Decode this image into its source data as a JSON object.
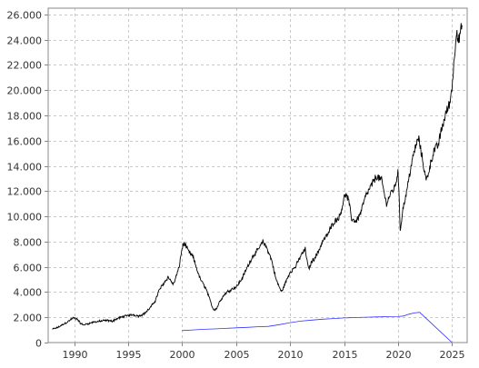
{
  "chart_data": {
    "type": "line",
    "title": "",
    "xlabel": "",
    "ylabel": "",
    "xlim": [
      1987.6,
      2026.4
    ],
    "ylim": [
      0,
      26500
    ],
    "grid": true,
    "x_ticks": [
      1990,
      1995,
      2000,
      2005,
      2010,
      2015,
      2020,
      2025
    ],
    "x_tick_labels": [
      "1990",
      "1995",
      "2000",
      "2005",
      "2010",
      "2015",
      "2020",
      "2025"
    ],
    "y_ticks": [
      0,
      2000,
      4000,
      6000,
      8000,
      10000,
      12000,
      14000,
      16000,
      18000,
      20000,
      22000,
      24000,
      26000
    ],
    "y_tick_labels": [
      "0",
      "2.000",
      "4.000",
      "6.000",
      "8.000",
      "10.000",
      "12.000",
      "14.000",
      "16.000",
      "18.000",
      "20.000",
      "22.000",
      "24.000",
      "26.000"
    ],
    "series": [
      {
        "color": "#000000",
        "noisy": true,
        "x": [
          1988.0,
          1988.5,
          1989.0,
          1989.5,
          1989.9,
          1990.3,
          1990.6,
          1990.9,
          1991.5,
          1992.0,
          1992.5,
          1993.0,
          1993.5,
          1994.0,
          1994.5,
          1995.0,
          1995.5,
          1996.0,
          1996.5,
          1997.0,
          1997.5,
          1997.9,
          1998.3,
          1998.7,
          1999.2,
          1999.7,
          2000.0,
          2000.2,
          2000.6,
          2001.0,
          2001.3,
          2001.6,
          2001.9,
          2002.2,
          2002.6,
          2002.9,
          2003.2,
          2003.5,
          2004.0,
          2004.5,
          2005.0,
          2005.5,
          2006.0,
          2006.5,
          2007.0,
          2007.5,
          2007.9,
          2008.3,
          2008.7,
          2009.2,
          2009.5,
          2010.0,
          2010.5,
          2011.0,
          2011.4,
          2011.7,
          2012.0,
          2012.5,
          2013.0,
          2013.5,
          2014.0,
          2014.6,
          2015.1,
          2015.4,
          2015.7,
          2016.1,
          2016.5,
          2017.0,
          2017.5,
          2018.0,
          2018.5,
          2018.9,
          2019.3,
          2019.7,
          2020.0,
          2020.2,
          2020.4,
          2020.8,
          2021.2,
          2021.6,
          2021.9,
          2022.3,
          2022.6,
          2022.9,
          2023.3,
          2023.7,
          2024.0,
          2024.4,
          2024.8,
          2025.0,
          2025.2,
          2025.4,
          2025.6,
          2025.8,
          2025.95
        ],
        "y": [
          1050,
          1200,
          1450,
          1700,
          1950,
          1850,
          1500,
          1400,
          1550,
          1650,
          1700,
          1750,
          1700,
          1900,
          2050,
          2150,
          2200,
          2100,
          2300,
          2700,
          3300,
          4200,
          4700,
          5200,
          4600,
          5900,
          7500,
          7900,
          7200,
          6800,
          6000,
          5200,
          4700,
          4300,
          3300,
          2600,
          2700,
          3300,
          3900,
          4200,
          4400,
          5000,
          5900,
          6800,
          7300,
          8000,
          7400,
          6500,
          5000,
          4000,
          4600,
          5600,
          6000,
          6900,
          7400,
          5800,
          6400,
          7000,
          8000,
          8600,
          9500,
          10000,
          11800,
          11300,
          9800,
          9600,
          10200,
          11600,
          12400,
          13200,
          12800,
          11000,
          11800,
          12300,
          13600,
          8800,
          10400,
          12000,
          14000,
          15500,
          16200,
          14300,
          12800,
          13800,
          15200,
          15600,
          16800,
          18100,
          19000,
          20400,
          22400,
          25000,
          23800,
          24800,
          24600
        ]
      },
      {
        "color": "#3333ff",
        "noisy": false,
        "x": [
          2000.0,
          2001.0,
          2002.0,
          2003.0,
          2004.0,
          2005.0,
          2006.0,
          2007.0,
          2008.0,
          2009.0,
          2010.0,
          2011.0,
          2012.0,
          2013.0,
          2014.0,
          2015.0,
          2016.0,
          2017.0,
          2018.0,
          2019.0,
          2020.0,
          2020.5,
          2021.0,
          2021.5,
          2022.0,
          2023.0,
          2024.0,
          2025.0,
          2025.5
        ],
        "y": [
          950,
          1000,
          1050,
          1080,
          1120,
          1170,
          1200,
          1250,
          1280,
          1420,
          1580,
          1700,
          1780,
          1850,
          1900,
          1950,
          1980,
          2010,
          2030,
          2050,
          2060,
          2100,
          2250,
          2350,
          2400,
          1600,
          800,
          0,
          -100
        ]
      }
    ]
  }
}
